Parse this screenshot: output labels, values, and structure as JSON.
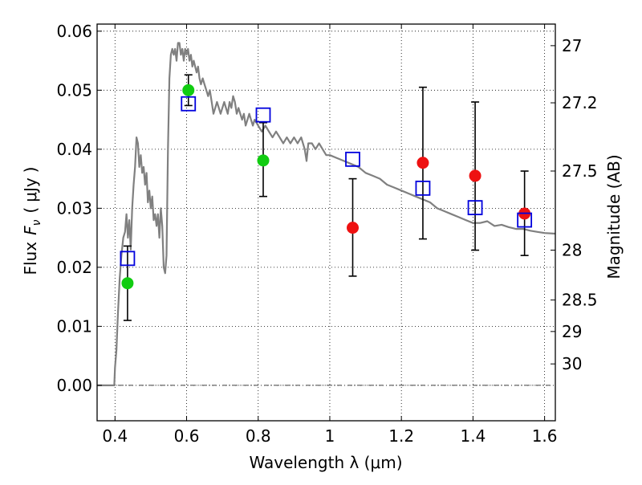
{
  "chart_data": {
    "type": "scatter",
    "xlabel": "Wavelength  λ (μm)",
    "ylabel": "Flux  F_ν  ( μJy )",
    "ylabel_parts": {
      "prefix": "Flux",
      "symbol": "F",
      "subscript": "ν",
      "paren_open": "(",
      "unit": "μJy",
      "paren_close": ")"
    },
    "y2label": "Magnitude (AB)",
    "xlim": [
      0.35,
      1.63
    ],
    "ylim": [
      -0.006,
      0.0612
    ],
    "x_ticks": [
      0.4,
      0.6,
      0.8,
      1.0,
      1.2,
      1.4,
      1.6
    ],
    "x_tick_labels": [
      "0.4",
      "0.6",
      "0.8",
      "1",
      "1.2",
      "1.4",
      "1.6"
    ],
    "y_ticks": [
      0.0,
      0.01,
      0.02,
      0.03,
      0.04,
      0.05,
      0.06
    ],
    "y_tick_labels": [
      "0.00",
      "0.01",
      "0.02",
      "0.03",
      "0.04",
      "0.05",
      "0.06"
    ],
    "y2_ticks": [
      27,
      27.2,
      27.5,
      28,
      28.5,
      29,
      30
    ],
    "y2_tick_labels": [
      "27",
      "27.2",
      "27.5",
      "28",
      "28.5",
      "29",
      "30"
    ],
    "grid": true,
    "colors": {
      "model": "#808080",
      "green": "#11cc11",
      "red": "#ee1111",
      "blue": "#0000dd",
      "errorbar": "#000000"
    },
    "series": [
      {
        "marker": "line",
        "x": [
          0.35,
          0.398,
          0.4,
          0.404,
          0.408,
          0.413,
          0.418,
          0.423,
          0.428,
          0.432,
          0.436,
          0.44,
          0.444,
          0.448,
          0.452,
          0.456,
          0.46,
          0.464,
          0.468,
          0.472,
          0.476,
          0.48,
          0.484,
          0.488,
          0.492,
          0.496,
          0.5,
          0.504,
          0.508,
          0.512,
          0.516,
          0.52,
          0.524,
          0.528,
          0.532,
          0.536,
          0.54,
          0.544,
          0.548,
          0.552,
          0.556,
          0.56,
          0.564,
          0.568,
          0.572,
          0.576,
          0.58,
          0.584,
          0.588,
          0.592,
          0.596,
          0.6,
          0.604,
          0.608,
          0.612,
          0.616,
          0.62,
          0.624,
          0.628,
          0.632,
          0.636,
          0.64,
          0.645,
          0.65,
          0.655,
          0.66,
          0.665,
          0.67,
          0.675,
          0.68,
          0.685,
          0.69,
          0.695,
          0.7,
          0.705,
          0.71,
          0.715,
          0.72,
          0.725,
          0.73,
          0.735,
          0.74,
          0.745,
          0.75,
          0.755,
          0.76,
          0.765,
          0.77,
          0.775,
          0.78,
          0.785,
          0.79,
          0.8,
          0.81,
          0.82,
          0.83,
          0.84,
          0.85,
          0.86,
          0.87,
          0.88,
          0.89,
          0.9,
          0.91,
          0.92,
          0.93,
          0.935,
          0.94,
          0.95,
          0.96,
          0.97,
          0.98,
          0.99,
          1.0,
          1.02,
          1.04,
          1.06,
          1.08,
          1.1,
          1.12,
          1.14,
          1.16,
          1.18,
          1.2,
          1.22,
          1.24,
          1.26,
          1.28,
          1.3,
          1.32,
          1.34,
          1.36,
          1.38,
          1.4,
          1.42,
          1.44,
          1.46,
          1.48,
          1.5,
          1.52,
          1.54,
          1.56,
          1.58,
          1.6,
          1.63
        ],
        "y": [
          0.0,
          0.0,
          0.003,
          0.006,
          0.012,
          0.018,
          0.022,
          0.025,
          0.026,
          0.029,
          0.025,
          0.028,
          0.023,
          0.03,
          0.034,
          0.037,
          0.042,
          0.041,
          0.037,
          0.039,
          0.036,
          0.037,
          0.034,
          0.036,
          0.031,
          0.033,
          0.03,
          0.032,
          0.028,
          0.029,
          0.027,
          0.029,
          0.025,
          0.03,
          0.027,
          0.02,
          0.019,
          0.022,
          0.04,
          0.052,
          0.056,
          0.057,
          0.056,
          0.057,
          0.055,
          0.058,
          0.058,
          0.056,
          0.057,
          0.055,
          0.057,
          0.056,
          0.057,
          0.055,
          0.056,
          0.054,
          0.055,
          0.054,
          0.053,
          0.054,
          0.052,
          0.051,
          0.052,
          0.051,
          0.05,
          0.049,
          0.05,
          0.048,
          0.046,
          0.047,
          0.048,
          0.047,
          0.046,
          0.047,
          0.048,
          0.047,
          0.046,
          0.048,
          0.047,
          0.049,
          0.048,
          0.046,
          0.047,
          0.046,
          0.045,
          0.046,
          0.044,
          0.045,
          0.046,
          0.045,
          0.044,
          0.045,
          0.044,
          0.043,
          0.044,
          0.043,
          0.042,
          0.043,
          0.042,
          0.041,
          0.042,
          0.041,
          0.042,
          0.041,
          0.042,
          0.04,
          0.038,
          0.041,
          0.041,
          0.04,
          0.041,
          0.04,
          0.039,
          0.039,
          0.0385,
          0.038,
          0.0375,
          0.037,
          0.036,
          0.0355,
          0.035,
          0.034,
          0.0335,
          0.033,
          0.0325,
          0.032,
          0.0315,
          0.031,
          0.03,
          0.0295,
          0.029,
          0.0285,
          0.028,
          0.0275,
          0.0275,
          0.0278,
          0.027,
          0.0272,
          0.0268,
          0.0265,
          0.0265,
          0.0262,
          0.026,
          0.0258,
          0.0257
        ]
      },
      {
        "marker": "green-circle",
        "x": [
          0.435,
          0.605,
          0.814
        ],
        "y": [
          0.0173,
          0.05,
          0.0381
        ],
        "yerr_low": [
          0.011,
          0.0474,
          0.032
        ],
        "yerr_high": [
          0.0236,
          0.0526,
          0.0445
        ]
      },
      {
        "marker": "red-circle",
        "x": [
          1.064,
          1.26,
          1.406,
          1.544
        ],
        "y": [
          0.0267,
          0.0377,
          0.0355,
          0.0291
        ],
        "yerr_low": [
          0.0185,
          0.0248,
          0.0229,
          0.022
        ],
        "yerr_high": [
          0.035,
          0.0505,
          0.048,
          0.0363
        ]
      },
      {
        "marker": "blue-square",
        "x": [
          0.435,
          0.605,
          0.814,
          1.064,
          1.26,
          1.406,
          1.544
        ],
        "y": [
          0.0215,
          0.0477,
          0.0458,
          0.0383,
          0.0334,
          0.0301,
          0.028
        ]
      }
    ]
  }
}
